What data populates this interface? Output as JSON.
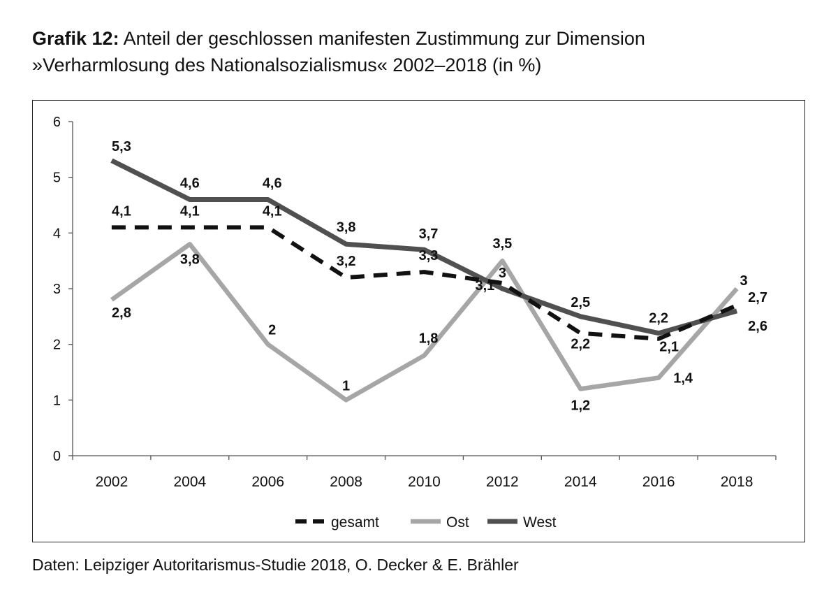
{
  "title": {
    "bold": "Grafik 12:",
    "line1": " Anteil der geschlossen manifesten Zustimmung zur Dimension",
    "line2": "»Verharmlosung des Nationalsozialismus« 2002–2018 (in %)"
  },
  "source": "Daten: Leipziger Autoritarismus-Studie 2018, O. Decker & E. Brähler",
  "colors": {
    "gesamt": "#111111",
    "ost": "#a6a6a6",
    "west": "#505050",
    "axis": "#555555"
  },
  "chart_data": {
    "type": "line",
    "categories": [
      "2002",
      "2004",
      "2006",
      "2008",
      "2010",
      "2012",
      "2014",
      "2016",
      "2018"
    ],
    "ylim": [
      0,
      6
    ],
    "yticks": [
      "0",
      "1",
      "2",
      "3",
      "4",
      "5",
      "6"
    ],
    "grid": false,
    "legend_position": "bottom",
    "series": [
      {
        "name": "gesamt",
        "style": "dashed",
        "values": [
          4.1,
          4.1,
          4.1,
          3.2,
          3.3,
          3.1,
          2.2,
          2.1,
          2.7
        ],
        "labels": [
          "4,1",
          "4,1",
          "4,1",
          "3,2",
          "3,3",
          "3,1",
          "2,2",
          "2,1",
          "2,7"
        ]
      },
      {
        "name": "Ost",
        "style": "solid",
        "values": [
          2.8,
          3.8,
          2.0,
          1.0,
          1.8,
          3.5,
          1.2,
          1.4,
          3.0
        ],
        "labels": [
          "2,8",
          "3,8",
          "2",
          "1",
          "1,8",
          "3,5",
          "1,2",
          "1,4",
          "3"
        ]
      },
      {
        "name": "West",
        "style": "solid",
        "values": [
          5.3,
          4.6,
          4.6,
          3.8,
          3.7,
          3.0,
          2.5,
          2.2,
          2.6
        ],
        "labels": [
          "5,3",
          "4,6",
          "4,6",
          "3,8",
          "3,7",
          "3",
          "2,5",
          "2,2",
          "2,6"
        ]
      }
    ]
  }
}
